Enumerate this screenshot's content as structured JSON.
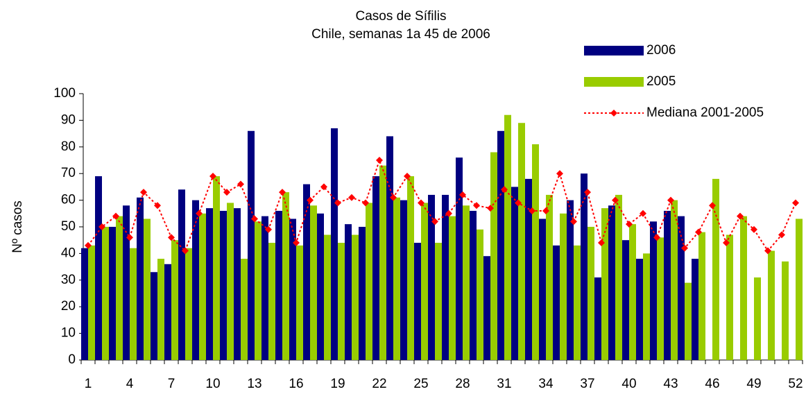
{
  "chart_data": {
    "type": "bar",
    "title": "Casos de Sífilis",
    "subtitle": "Chile, semanas 1a 45 de 2006",
    "y_label": "Nº casos",
    "categories": [
      "1",
      null,
      null,
      "4",
      null,
      null,
      "7",
      null,
      null,
      "10",
      null,
      null,
      "13",
      null,
      null,
      "16",
      null,
      null,
      "19",
      null,
      null,
      "22",
      null,
      null,
      "25",
      null,
      null,
      "28",
      null,
      null,
      "31",
      null,
      null,
      "34",
      null,
      null,
      "37",
      null,
      null,
      "40",
      null,
      null,
      "43",
      null,
      null,
      "46",
      null,
      null,
      "49",
      null,
      null,
      "52"
    ],
    "ylim": [
      0,
      100
    ],
    "yticks": [
      0,
      10,
      20,
      30,
      40,
      50,
      60,
      70,
      80,
      90,
      100
    ],
    "legend": "top-right",
    "series": [
      {
        "name": "2006",
        "type": "bar",
        "color": "#000080",
        "values": [
          42,
          69,
          50,
          58,
          61,
          33,
          36,
          64,
          60,
          57,
          56,
          57,
          86,
          54,
          56,
          53,
          66,
          55,
          87,
          51,
          50,
          69,
          84,
          60,
          44,
          62,
          62,
          76,
          56,
          39,
          86,
          65,
          68,
          53,
          43,
          60,
          70,
          31,
          58,
          45,
          38,
          52,
          56,
          54,
          38,
          null,
          null,
          null,
          null,
          null,
          null,
          null
        ]
      },
      {
        "name": "2005",
        "type": "bar",
        "color": "#99cc00",
        "values": [
          43,
          50,
          54,
          42,
          53,
          38,
          45,
          42,
          55,
          69,
          59,
          38,
          52,
          44,
          63,
          43,
          58,
          47,
          44,
          47,
          59,
          73,
          61,
          69,
          59,
          44,
          54,
          58,
          49,
          78,
          92,
          89,
          81,
          62,
          55,
          43,
          50,
          57,
          62,
          51,
          40,
          46,
          60,
          29,
          48,
          68,
          47,
          54,
          31,
          41,
          37,
          53
        ]
      },
      {
        "name": "Mediana 2001-2005",
        "type": "line",
        "color": "#ff0000",
        "values": [
          43,
          50,
          54,
          46,
          63,
          58,
          46,
          41,
          55,
          69,
          63,
          66,
          53,
          49,
          63,
          44,
          60,
          65,
          59,
          61,
          59,
          75,
          61,
          69,
          59,
          52,
          55,
          62,
          58,
          57,
          64,
          59,
          56,
          56,
          70,
          52,
          63,
          44,
          60,
          51,
          55,
          46,
          60,
          42,
          48,
          58,
          44,
          54,
          49,
          41,
          47,
          59
        ]
      }
    ]
  }
}
